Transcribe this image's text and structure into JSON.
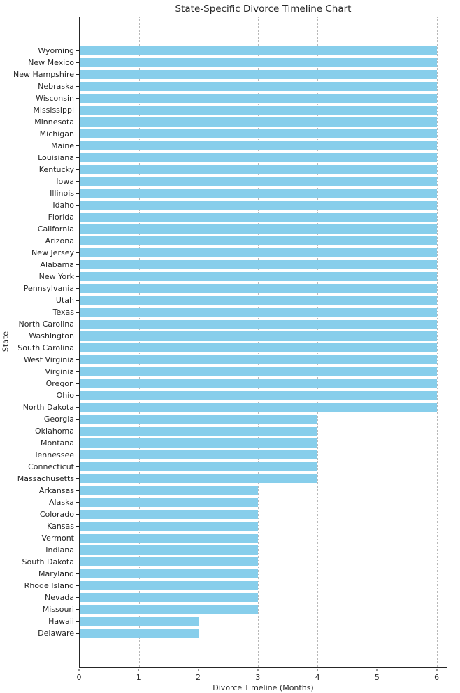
{
  "chart_data": {
    "type": "bar",
    "orientation": "horizontal",
    "title": "State-Specific Divorce Timeline Chart",
    "xlabel": "Divorce Timeline (Months)",
    "ylabel": "State",
    "xlim": [
      0,
      6.18
    ],
    "xticks": [
      0,
      1,
      2,
      3,
      4,
      5,
      6
    ],
    "grid": "vertical-dotted",
    "legend": "none",
    "bar_color": "#87CEEB",
    "categories": [
      "Wyoming",
      "New Mexico",
      "New Hampshire",
      "Nebraska",
      "Wisconsin",
      "Mississippi",
      "Minnesota",
      "Michigan",
      "Maine",
      "Louisiana",
      "Kentucky",
      "Iowa",
      "Illinois",
      "Idaho",
      "Florida",
      "California",
      "Arizona",
      "New Jersey",
      "Alabama",
      "New York",
      "Pennsylvania",
      "Utah",
      "Texas",
      "North Carolina",
      "Washington",
      "South Carolina",
      "West Virginia",
      "Virginia",
      "Oregon",
      "Ohio",
      "North Dakota",
      "Georgia",
      "Oklahoma",
      "Montana",
      "Tennessee",
      "Connecticut",
      "Massachusetts",
      "Arkansas",
      "Alaska",
      "Colorado",
      "Kansas",
      "Vermont",
      "Indiana",
      "South Dakota",
      "Maryland",
      "Rhode Island",
      "Nevada",
      "Missouri",
      "Hawaii",
      "Delaware"
    ],
    "values": [
      6,
      6,
      6,
      6,
      6,
      6,
      6,
      6,
      6,
      6,
      6,
      6,
      6,
      6,
      6,
      6,
      6,
      6,
      6,
      6,
      6,
      6,
      6,
      6,
      6,
      6,
      6,
      6,
      6,
      6,
      6,
      4,
      4,
      4,
      4,
      4,
      4,
      3,
      3,
      3,
      3,
      3,
      3,
      3,
      3,
      3,
      3,
      3,
      2,
      2
    ]
  }
}
